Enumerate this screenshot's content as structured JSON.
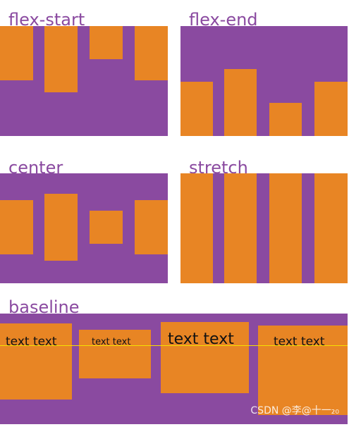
{
  "labels": {
    "flex_start": "flex-start",
    "flex_end": "flex-end",
    "center": "center",
    "stretch": "stretch",
    "baseline": "baseline"
  },
  "baseline_items": [
    "text text",
    "text text",
    "text text",
    "text text"
  ],
  "colors": {
    "panel": "#8a4aa0",
    "item": "#e88524",
    "baseline_line": "#f5e000"
  },
  "watermark": "CSDN @李@十一₂₀"
}
